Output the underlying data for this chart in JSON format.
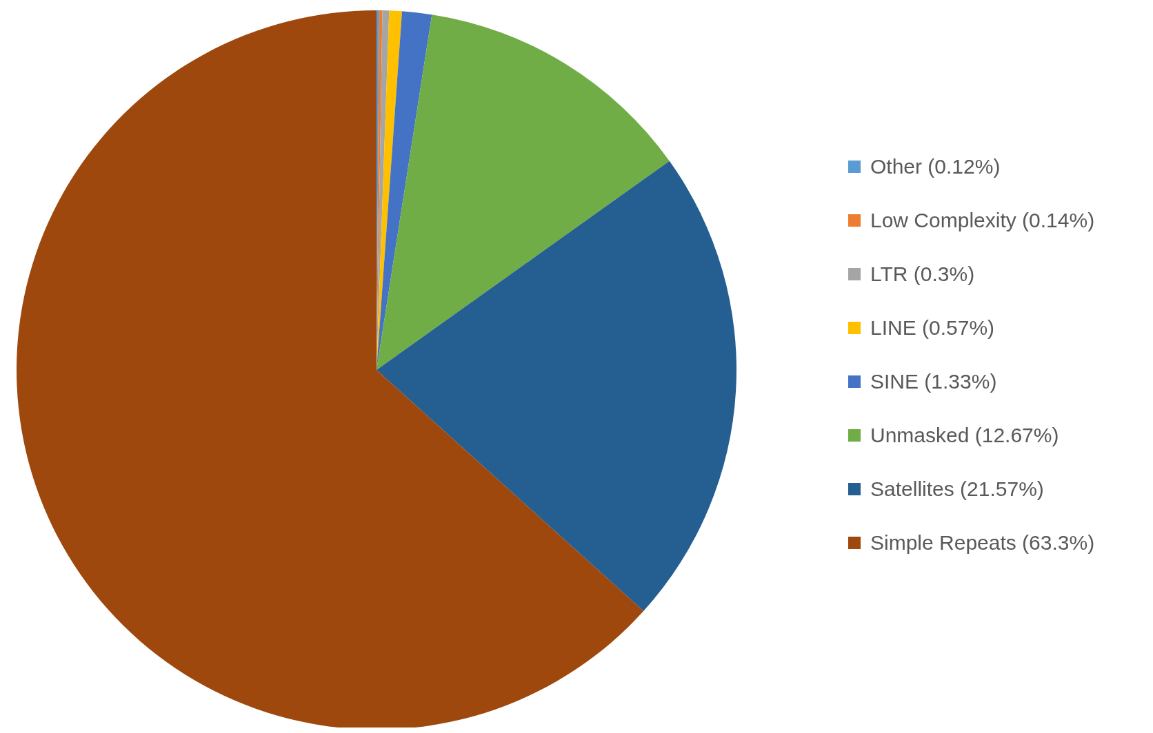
{
  "chart_data": {
    "type": "pie",
    "categories": [
      "Other (0.12%)",
      "Low Complexity (0.14%)",
      "LTR (0.3%)",
      "LINE (0.57%)",
      "SINE (1.33%)",
      "Unmasked (12.67%)",
      "Satellites (21.57%)",
      "Simple Repeats (63.3%)"
    ],
    "values": [
      0.12,
      0.14,
      0.3,
      0.57,
      1.33,
      12.67,
      21.57,
      63.3
    ],
    "colors": [
      "#5b9bd5",
      "#ed7d31",
      "#a5a5a5",
      "#ffc000",
      "#4472c4",
      "#70ad47",
      "#255e91",
      "#9e480e"
    ],
    "legend": "right"
  }
}
